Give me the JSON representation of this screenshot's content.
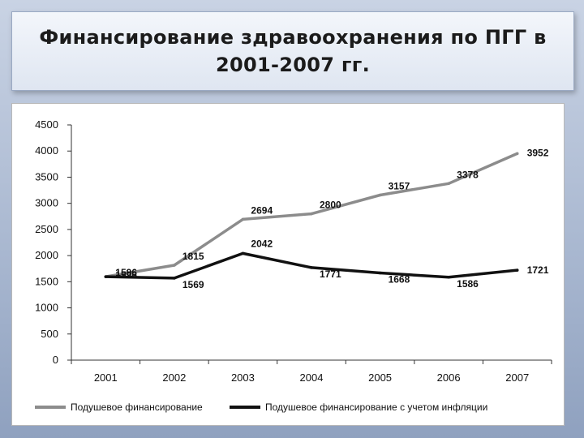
{
  "slide": {
    "title": "Финансирование здравоохранения по ПГГ в\n2001-2007 гг."
  },
  "chart_data": {
    "type": "line",
    "categories": [
      "2001",
      "2002",
      "2003",
      "2004",
      "2005",
      "2006",
      "2007"
    ],
    "ylim": [
      0,
      4500
    ],
    "yticks": [
      0,
      500,
      1000,
      1500,
      2000,
      2500,
      3000,
      3500,
      4000,
      4500
    ],
    "grid": false,
    "legend_position": "bottom",
    "series": [
      {
        "name": "Подушевое финансирование",
        "color": "#8c8c8c",
        "values": [
          1596,
          1815,
          2694,
          2800,
          3157,
          3378,
          3952
        ]
      },
      {
        "name": "Подушевое финансирование с учетом инфляции",
        "color": "#111111",
        "values": [
          1596,
          1569,
          2042,
          1771,
          1668,
          1586,
          1721
        ]
      }
    ]
  }
}
